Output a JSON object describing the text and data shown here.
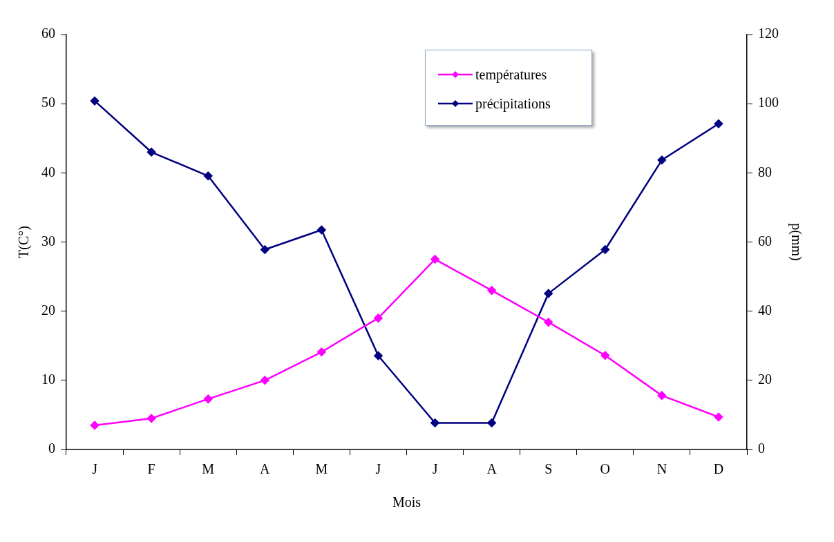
{
  "chart_data": {
    "type": "line",
    "xlabel": "Mois",
    "ylabel": "T(C°)",
    "y2label": "p(mm)",
    "categories": [
      "J",
      "F",
      "M",
      "A",
      "M",
      "J",
      "J",
      "A",
      "S",
      "O",
      "N",
      "D"
    ],
    "series": [
      {
        "name": "températures",
        "color": "#ff00ff",
        "values": [
          3.5,
          4.5,
          7.3,
          10,
          14.1,
          19,
          27.5,
          23,
          18.4,
          13.6,
          7.8,
          4.7
        ]
      },
      {
        "name": "précipitations",
        "color": "#000080",
        "axis": "y2",
        "values": [
          100.8,
          86,
          79.1,
          57.8,
          63.5,
          27.1,
          7.7,
          7.7,
          45.1,
          57.8,
          83.7,
          94.2
        ]
      }
    ],
    "ylim": [
      0,
      60
    ],
    "yticks": [
      0,
      10,
      20,
      30,
      40,
      50,
      60
    ],
    "y2lim": [
      0,
      120
    ],
    "y2ticks": [
      0,
      20,
      40,
      60,
      80,
      100,
      120
    ],
    "legend": "top right",
    "marker": "diamond",
    "line_style": "solid",
    "grid": false
  }
}
